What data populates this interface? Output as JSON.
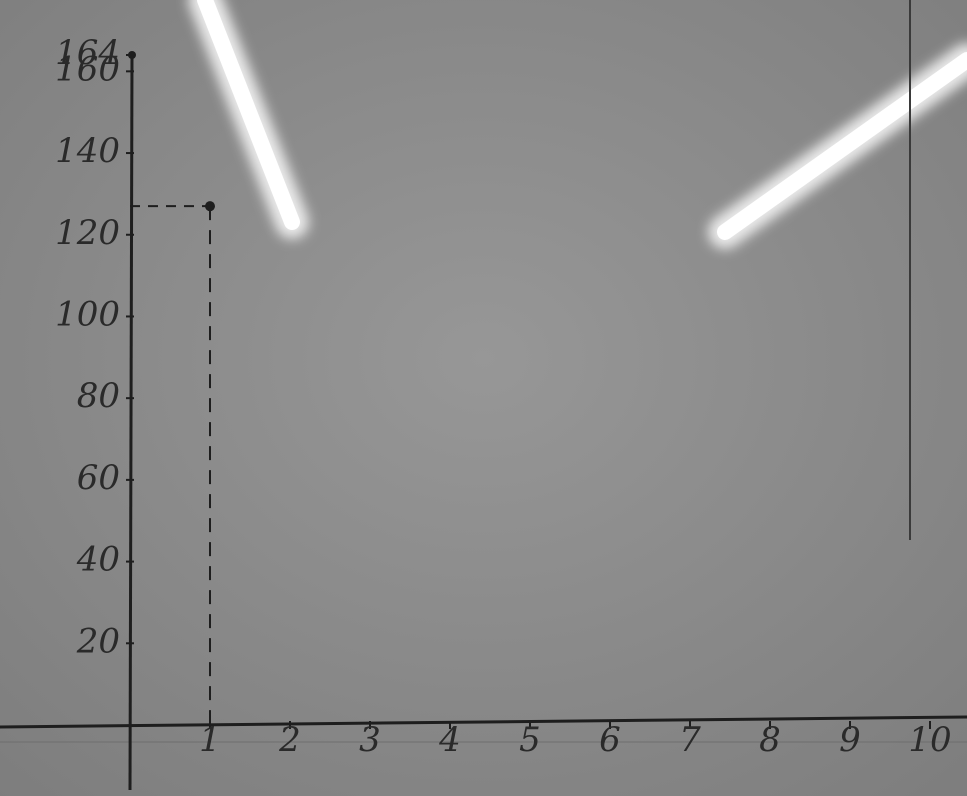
{
  "chart_data": {
    "type": "scatter",
    "x": [
      1
    ],
    "values": [
      127
    ],
    "color": "#1e1e1e",
    "xlim": [
      0,
      10
    ],
    "xticks": [
      1,
      2,
      3,
      4,
      5,
      6,
      7,
      8,
      9,
      10
    ],
    "ylim": [
      0,
      164
    ],
    "yticks": [
      20,
      40,
      60,
      80,
      100,
      120,
      140,
      160,
      164
    ],
    "guides": true
  }
}
